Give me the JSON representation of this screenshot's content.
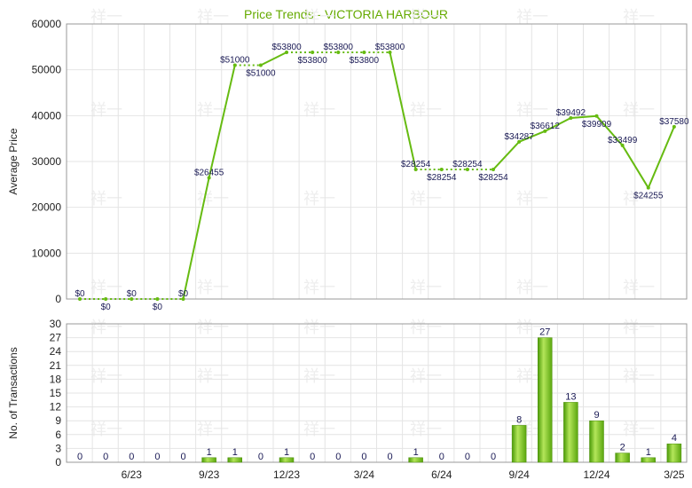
{
  "chart_data": [
    {
      "type": "line",
      "title": "Price Trends - VICTORIA HARBOUR",
      "ylabel": "Average Price",
      "ylim": [
        0,
        60000
      ],
      "yticks": [
        0,
        10000,
        20000,
        30000,
        40000,
        50000,
        60000
      ],
      "x_tick_labels": [
        "6/23",
        "9/23",
        "12/23",
        "3/24",
        "6/24",
        "9/24",
        "12/24",
        "3/25"
      ],
      "values": [
        0,
        0,
        0,
        0,
        0,
        26455,
        51000,
        51000,
        53800,
        53800,
        53800,
        53800,
        53800,
        28254,
        28254,
        28254,
        28254,
        34287,
        36612,
        39492,
        39909,
        33499,
        24255,
        37580
      ],
      "labels": [
        "$0",
        "$0",
        "$0",
        "$0",
        "$0",
        "$26455",
        "$51000",
        "$51000",
        "$53800",
        "$53800",
        "$53800",
        "$53800",
        "$53800",
        "$28254",
        "$28254",
        "$28254",
        "$28254",
        "$34287",
        "$36612",
        "$39492",
        "$39909",
        "$33499",
        "$24255",
        "$37580"
      ],
      "color": "#66bb11",
      "grid": true
    },
    {
      "type": "bar",
      "ylabel": "No. of Transactions",
      "ylim": [
        0,
        30
      ],
      "yticks": [
        0,
        3,
        6,
        9,
        12,
        15,
        18,
        21,
        24,
        27,
        30
      ],
      "x_tick_labels": [
        "6/23",
        "9/23",
        "12/23",
        "3/24",
        "6/24",
        "9/24",
        "12/24",
        "3/25"
      ],
      "values": [
        0,
        0,
        0,
        0,
        0,
        1,
        1,
        0,
        1,
        0,
        0,
        0,
        0,
        1,
        0,
        0,
        0,
        8,
        27,
        13,
        9,
        2,
        1,
        4
      ],
      "color": "#66bb11",
      "grid": true
    }
  ]
}
